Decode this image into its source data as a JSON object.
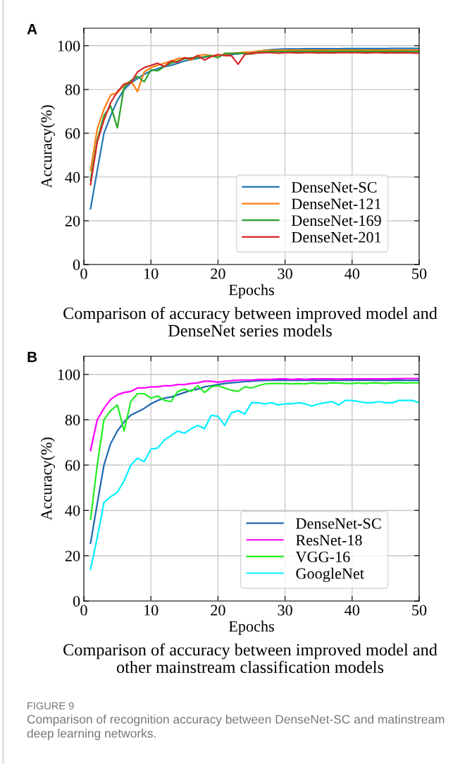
{
  "chart_data": [
    {
      "type": "line",
      "title": "A",
      "xlabel": "Epochs",
      "ylabel": "Accuracy(%)",
      "xlim": [
        0,
        50
      ],
      "ylim": [
        0,
        108
      ],
      "xticks": [
        0,
        10,
        20,
        30,
        40,
        50
      ],
      "yticks": [
        0,
        20,
        40,
        60,
        80,
        100
      ],
      "grid": true,
      "legend": "lower right",
      "line_style": "solid",
      "x": [
        1,
        2,
        3,
        4,
        5,
        6,
        7,
        8,
        9,
        10,
        11,
        12,
        13,
        14,
        15,
        16,
        17,
        18,
        19,
        20,
        21,
        22,
        23,
        24,
        25,
        26,
        27,
        28,
        29,
        30,
        31,
        32,
        33,
        34,
        35,
        36,
        37,
        38,
        39,
        40,
        41,
        42,
        43,
        44,
        45,
        46,
        47,
        48,
        49,
        50
      ],
      "annotations": [
        "Comparison of accuracy between improved model and DenseNet series models"
      ],
      "series": [
        {
          "name": "DenseNet-SC",
          "color": "#1f77b4",
          "values": [
            25.5,
            43,
            60,
            68,
            75,
            80,
            83,
            85,
            87,
            88.5,
            89.5,
            90.5,
            91,
            92,
            93,
            93.7,
            94.2,
            94.8,
            95.2,
            95.5,
            95.8,
            96,
            96.3,
            96.6,
            96.9,
            97.5,
            97.9,
            98.2,
            98.4,
            98.5,
            98.5,
            98.5,
            98.6,
            98.6,
            98.6,
            98.6,
            98.6,
            98.6,
            98.7,
            98.7,
            98.7,
            98.7,
            98.7,
            98.7,
            98.7,
            98.8,
            98.8,
            98.8,
            98.8,
            98.8
          ]
        },
        {
          "name": "DenseNet-121",
          "color": "#ff7f0e",
          "values": [
            43,
            62,
            71,
            77.5,
            78.5,
            82,
            84,
            79,
            88,
            90,
            91,
            92,
            93,
            94,
            94.5,
            93.5,
            95.5,
            96,
            95.5,
            95.5,
            96,
            96.5,
            96.8,
            97,
            97.2,
            97.5,
            97.8,
            97.9,
            97.9,
            98,
            98,
            98,
            98,
            98,
            98,
            98,
            98,
            98,
            98,
            98,
            98,
            98,
            98,
            98,
            98,
            98,
            98,
            98,
            98,
            98
          ]
        },
        {
          "name": "DenseNet-169",
          "color": "#2ca02c",
          "values": [
            38.5,
            57,
            68,
            72.5,
            62.5,
            81,
            84,
            86,
            83.5,
            89,
            88.5,
            90.5,
            92,
            93,
            94,
            94.5,
            94.5,
            95,
            95.5,
            94.5,
            96.5,
            96.5,
            96.5,
            96.5,
            96.2,
            97,
            97.2,
            97.3,
            97.3,
            97.3,
            97.4,
            97.4,
            97.4,
            97.4,
            97.4,
            97.4,
            97.4,
            97.4,
            97.4,
            97.4,
            97.4,
            97.4,
            97.4,
            97.4,
            97.4,
            97.4,
            97.4,
            97.4,
            97.4,
            97.4
          ]
        },
        {
          "name": "DenseNet-201",
          "color": "#d62728",
          "values": [
            36.5,
            56,
            66,
            74,
            79,
            82.5,
            83,
            88,
            90,
            91,
            92,
            90.5,
            93,
            92.5,
            94.5,
            94,
            95.5,
            93.5,
            95,
            96,
            95.5,
            95.5,
            91.5,
            96,
            96.5,
            96.7,
            96.8,
            96.8,
            96.6,
            96.8,
            96.8,
            96.7,
            96.8,
            96.8,
            96.7,
            96.8,
            96.7,
            96.8,
            96.8,
            96.8,
            96.8,
            96.7,
            96.8,
            96.8,
            96.7,
            96.8,
            96.7,
            96.8,
            96.7,
            96.6
          ]
        }
      ]
    },
    {
      "type": "line",
      "title": "B",
      "xlabel": "Epochs",
      "ylabel": "Accuracy(%)",
      "xlim": [
        0,
        50
      ],
      "ylim": [
        0,
        108
      ],
      "xticks": [
        0,
        10,
        20,
        30,
        40,
        50
      ],
      "yticks": [
        0,
        20,
        40,
        60,
        80,
        100
      ],
      "grid": true,
      "legend": "lower right",
      "line_style": "solid",
      "x": [
        1,
        2,
        3,
        4,
        5,
        6,
        7,
        8,
        9,
        10,
        11,
        12,
        13,
        14,
        15,
        16,
        17,
        18,
        19,
        20,
        21,
        22,
        23,
        24,
        25,
        26,
        27,
        28,
        29,
        30,
        31,
        32,
        33,
        34,
        35,
        36,
        37,
        38,
        39,
        40,
        41,
        42,
        43,
        44,
        45,
        46,
        47,
        48,
        49,
        50
      ],
      "annotations": [
        "Comparison of accuracy between improved model and other mainstream classification models",
        "FIGURE 9",
        "Comparison of recognition accuracy between DenseNet-SC and matinstream deep learning networks."
      ],
      "series": [
        {
          "name": "DenseNet-SC",
          "color": "#1f68b0",
          "values": [
            25.5,
            43,
            60,
            69.5,
            75,
            79,
            82,
            83.5,
            85,
            87,
            88.5,
            89.5,
            90,
            91,
            92,
            93,
            93.5,
            94.5,
            95,
            95.5,
            96,
            96.3,
            96.5,
            96.8,
            97,
            97.2,
            97.3,
            97.4,
            97.4,
            97.4,
            97.4,
            97.4,
            97.4,
            97.4,
            97.4,
            97.4,
            97.4,
            97.4,
            97.4,
            97.4,
            97.4,
            97.4,
            97.4,
            97.4,
            97.4,
            97.4,
            97.4,
            97.4,
            97.4,
            97.4
          ]
        },
        {
          "name": "ResNet-18",
          "color": "#ff00ff",
          "values": [
            66.5,
            80,
            85,
            89,
            91,
            92,
            92.5,
            94,
            94,
            94.5,
            94.5,
            95,
            95,
            95.5,
            95.5,
            96,
            96.3,
            97,
            97,
            96.5,
            97,
            97.2,
            97.5,
            97.5,
            97.5,
            97.8,
            97.8,
            97.8,
            98,
            98,
            97.8,
            98,
            97.8,
            98,
            98,
            98,
            98,
            97.9,
            98,
            98,
            98,
            98,
            98,
            98,
            98,
            98.1,
            98.1,
            98.2,
            98.2,
            98.2
          ]
        },
        {
          "name": "VGG-16",
          "color": "#22ee22",
          "values": [
            36,
            60,
            80,
            84,
            86.5,
            75,
            88,
            91.5,
            91.5,
            89.5,
            90.5,
            88.5,
            88,
            92.5,
            93.5,
            92.5,
            95,
            92,
            94.5,
            95,
            94,
            93,
            92.5,
            94.5,
            94,
            95,
            95.8,
            96,
            96,
            96,
            95.8,
            96,
            95.8,
            96.2,
            96,
            96,
            96.3,
            96.2,
            96,
            96,
            96.2,
            96,
            96.3,
            96.2,
            96,
            96.3,
            96.3,
            96.2,
            96.3,
            96.3
          ]
        },
        {
          "name": "GoogleNet",
          "color": "#00f0ff",
          "values": [
            14,
            28,
            43.5,
            46,
            48,
            53,
            60,
            63,
            61.5,
            67,
            67.5,
            71,
            73,
            75,
            74,
            76,
            77.5,
            76,
            82,
            81.5,
            77.5,
            83,
            84,
            82.5,
            87.5,
            87.5,
            87,
            87.5,
            86.5,
            87,
            87,
            87.5,
            87,
            86,
            87,
            87.5,
            88,
            86.5,
            88.5,
            88.5,
            88,
            87.5,
            87.5,
            88,
            87.5,
            87.5,
            88.5,
            88.5,
            88.5,
            87.5
          ]
        }
      ]
    }
  ]
}
